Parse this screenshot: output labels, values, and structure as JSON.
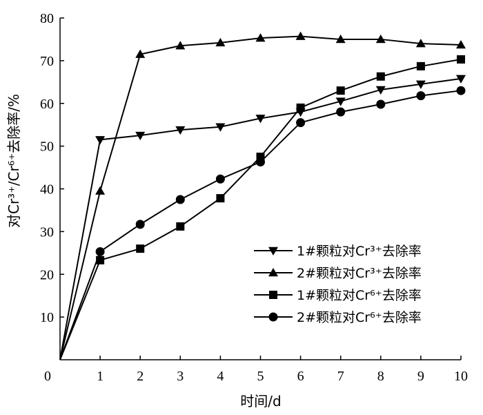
{
  "chart_data": {
    "type": "line",
    "xlabel": "时间/d",
    "ylabel": "对Cr³⁺/Cr⁶⁺去除率/%",
    "xlim": [
      0,
      10
    ],
    "ylim": [
      0,
      80
    ],
    "x_ticks": [
      "0",
      "1",
      "2",
      "3",
      "4",
      "5",
      "6",
      "7",
      "8",
      "9",
      "10"
    ],
    "y_ticks": [
      "10",
      "20",
      "30",
      "40",
      "50",
      "60",
      "70",
      "80"
    ],
    "x": [
      0,
      1,
      2,
      3,
      4,
      5,
      6,
      7,
      8,
      9,
      10
    ],
    "legend_position": "bottom-right",
    "grid": false,
    "series": [
      {
        "name": "1#颗粒对Cr³⁺去除率",
        "marker": "triangle-down",
        "values": [
          0,
          51.5,
          52.5,
          53.8,
          54.5,
          56.5,
          58.0,
          60.5,
          63.2,
          64.5,
          65.8
        ]
      },
      {
        "name": "2#颗粒对Cr³⁺去除率",
        "marker": "triangle-up",
        "values": [
          0,
          39.5,
          71.5,
          73.5,
          74.2,
          75.3,
          75.7,
          75.0,
          75.0,
          74.0,
          73.7
        ]
      },
      {
        "name": "1#颗粒对Cr⁶⁺去除率",
        "marker": "square",
        "values": [
          0,
          23.3,
          26.0,
          31.2,
          37.8,
          47.5,
          59.0,
          63.0,
          66.3,
          68.7,
          70.3
        ]
      },
      {
        "name": "2#颗粒对Cr⁶⁺去除率",
        "marker": "circle",
        "values": [
          0,
          25.3,
          31.7,
          37.5,
          42.3,
          46.3,
          55.5,
          58.0,
          59.8,
          61.8,
          63.0
        ]
      }
    ]
  }
}
